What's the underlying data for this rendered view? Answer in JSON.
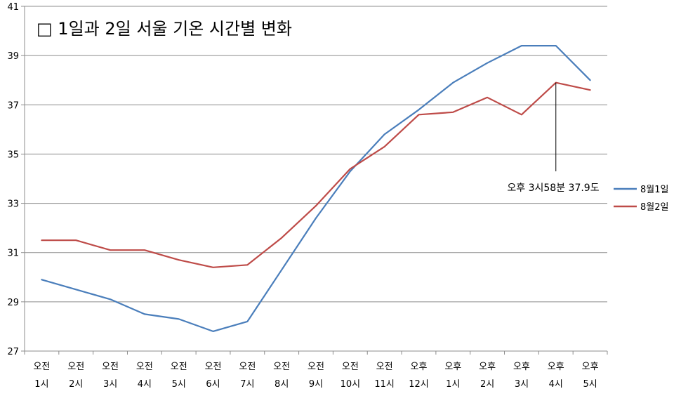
{
  "chart_data": {
    "type": "line",
    "title": "□ 1일과 2일 서울 기온 시간별 변화",
    "categories": [
      [
        "오전",
        "1시"
      ],
      [
        "오전",
        "2시"
      ],
      [
        "오전",
        "3시"
      ],
      [
        "오전",
        "4시"
      ],
      [
        "오전",
        "5시"
      ],
      [
        "오전",
        "6시"
      ],
      [
        "오전",
        "7시"
      ],
      [
        "오전",
        "8시"
      ],
      [
        "오전",
        "9시"
      ],
      [
        "오전",
        "10시"
      ],
      [
        "오전",
        "11시"
      ],
      [
        "오후",
        "12시"
      ],
      [
        "오후",
        "1시"
      ],
      [
        "오후",
        "2시"
      ],
      [
        "오후",
        "3시"
      ],
      [
        "오후",
        "4시"
      ],
      [
        "오후",
        "5시"
      ]
    ],
    "series": [
      {
        "name": "8월1일",
        "color": "#4a7ebb",
        "values": [
          29.9,
          29.5,
          29.1,
          28.5,
          28.3,
          27.8,
          28.2,
          30.3,
          32.4,
          34.3,
          35.8,
          36.8,
          37.9,
          38.7,
          39.4,
          39.4,
          38.0
        ]
      },
      {
        "name": "8월2일",
        "color": "#be4b48",
        "values": [
          31.5,
          31.5,
          31.1,
          31.1,
          30.7,
          30.4,
          30.5,
          31.6,
          32.9,
          34.4,
          35.3,
          36.6,
          36.7,
          37.3,
          36.6,
          37.9,
          37.6
        ]
      }
    ],
    "ylim": [
      27,
      41
    ],
    "yticks": [
      27,
      29,
      31,
      33,
      35,
      37,
      39,
      41
    ],
    "grid": true,
    "legend": "right",
    "annotation": {
      "text": "오후 3시58분 37.9도",
      "series": 1,
      "category_index": 15,
      "value": 37.9
    }
  }
}
